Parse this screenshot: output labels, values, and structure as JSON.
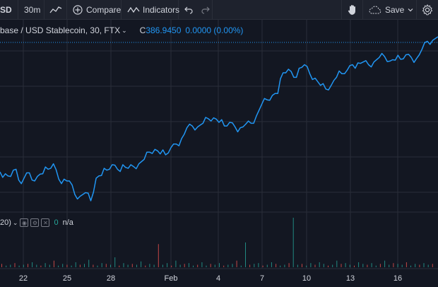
{
  "toolbar": {
    "symbol_label": "SD",
    "interval": "30m",
    "compare_label": "Compare",
    "indicators_label": "Indicators",
    "save_label": "Save",
    "icons": [
      "chart-type-icon",
      "plus-circle-icon",
      "indicators-icon",
      "undo-icon",
      "redo-icon",
      "hand-icon",
      "cloud-icon",
      "chevron-down-icon",
      "gear-icon"
    ]
  },
  "legend": {
    "title": "base / USD Stablecoin, 30, FTX",
    "ohlc_label": "C",
    "ohlc_value": "386.9450",
    "change": "0.0000 (0.00%)",
    "value_color": "#2196f3"
  },
  "volume_legend": {
    "label": "20)",
    "value": "0",
    "na": "n/a"
  },
  "colors": {
    "background": "#131722",
    "toolbar": "#1e222d",
    "grid": "#2a2e39",
    "line": "#2196f3",
    "vol_up": "#26a69a",
    "vol_down": "#ef5350"
  },
  "chart_data": {
    "type": "line",
    "x_tick_labels": [
      "22",
      "25",
      "28",
      "Feb",
      "4",
      "7",
      "10",
      "13",
      "16"
    ],
    "last_price": 386.945,
    "series": [
      {
        "values": [
          100,
          98,
          95,
          103,
          87,
          99,
          91,
          95,
          98,
          103,
          109,
          92,
          92,
          90,
          75,
          73,
          77,
          68,
          93,
          96,
          102,
          108,
          103,
          108,
          104,
          106,
          109,
          114,
          122,
          125,
          120,
          119,
          127,
          131,
          137,
          149,
          151,
          150,
          154,
          159,
          160,
          155,
          151,
          155,
          150,
          149,
          153,
          154,
          162,
          175,
          180,
          185,
          187,
          210,
          214,
          205,
          215,
          219,
          209,
          204,
          196,
          192,
          196,
          205,
          209,
          213,
          219,
          221,
          222,
          219,
          222,
          227,
          228,
          223,
          224,
          225,
          230,
          227,
          226,
          236,
          245,
          246,
          250
        ]
      }
    ],
    "volume": [
      4,
      2,
      3,
      5,
      2,
      3,
      4,
      6,
      3,
      2,
      5,
      3,
      8,
      2,
      4,
      3,
      2,
      6,
      3,
      4,
      9,
      3,
      2,
      5,
      4,
      3,
      12,
      2,
      5,
      3,
      4,
      3,
      7,
      2,
      4,
      3,
      28,
      3,
      5,
      2,
      8,
      3,
      4,
      5,
      2,
      3,
      6,
      2,
      4,
      3,
      5,
      2,
      3,
      4,
      8,
      2,
      30,
      3,
      4,
      5,
      2,
      3,
      6,
      4,
      2,
      3,
      5,
      60,
      3,
      4,
      2,
      5,
      3,
      6,
      4,
      2,
      3,
      8,
      4,
      5,
      3,
      2,
      6,
      4,
      3,
      5,
      2,
      4,
      8,
      3,
      5,
      4,
      3,
      6,
      2,
      4,
      3,
      5,
      3,
      4
    ]
  }
}
